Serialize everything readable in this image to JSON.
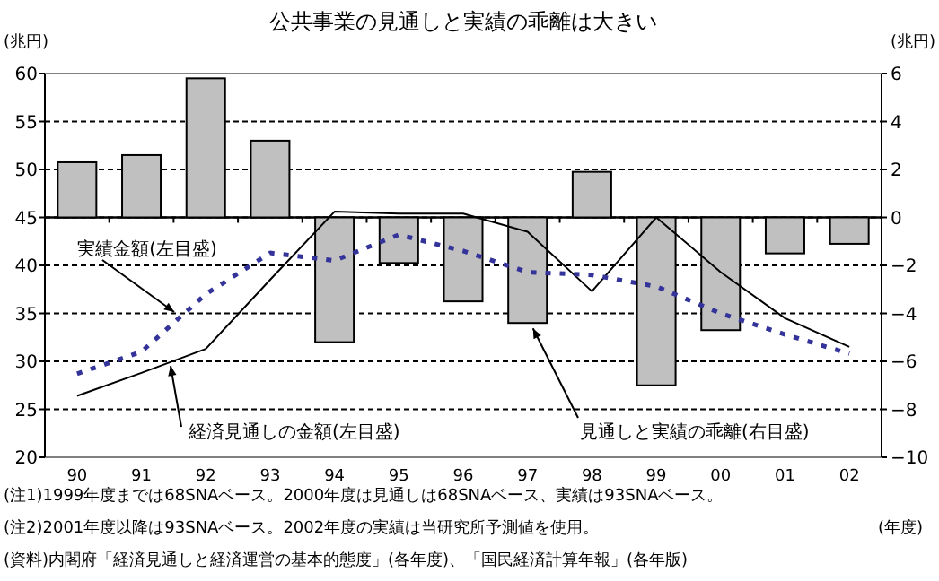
{
  "chart_data": {
    "type": "bar",
    "title": "公共事業の見通しと実績の乖離は大きい",
    "ylabel": "(兆円)",
    "y2label": "(兆円)",
    "xlabel": "(年度)",
    "categories": [
      "90",
      "91",
      "92",
      "93",
      "94",
      "95",
      "96",
      "97",
      "98",
      "99",
      "00",
      "01",
      "02"
    ],
    "series": [
      {
        "axis": "y2",
        "color": "#c0c0c0",
        "values": [
          2.3,
          2.6,
          5.8,
          3.2,
          -5.2,
          -1.9,
          -3.5,
          -4.4,
          1.9,
          -7.0,
          -4.7,
          -1.5,
          -1.1
        ]
      },
      {
        "type": "line",
        "color": "#000000",
        "line_style": "solid",
        "values": [
          26.4,
          28.8,
          31.3,
          38.5,
          45.6,
          45.4,
          45.4,
          43.5,
          37.3,
          45,
          39.3,
          34.5,
          31.5
        ]
      },
      {
        "type": "line",
        "color": "#333399",
        "line_style": "dashed",
        "values": [
          28.7,
          31.0,
          37.0,
          41.3,
          40.5,
          43.2,
          41.5,
          39.3,
          39,
          37.8,
          35,
          32.8,
          30.8
        ]
      }
    ],
    "ylim": [
      20,
      60
    ],
    "yticks": [
      20,
      25,
      30,
      35,
      40,
      45,
      50,
      55,
      60
    ],
    "y2lim": [
      -10,
      6
    ],
    "y2ticks": [
      {
        "value": -10,
        "label": "−10"
      },
      {
        "value": -8,
        "label": "−8"
      },
      {
        "value": -6,
        "label": "−6"
      },
      {
        "value": -4,
        "label": "−4"
      },
      {
        "value": -2,
        "label": "−2"
      },
      0,
      2,
      4,
      6
    ],
    "grid": "y",
    "annotations": [
      {
        "text": "見通しと実績の乖離(右目盛)",
        "x": "97",
        "y": 34
      },
      "経済見通しの金額(左目盛)",
      "実績金額(左目盛)",
      "(注1)1999年度までは68SNAベース。2000年度は見通しは68SNAベース、実績は93SNAベース。",
      "(注2)2001年度以降は93SNAベース。2002年度の実績は当研究所予測値を使用。",
      "(資料)内閣府「経済見通しと経済運営の基本的態度」(各年度)、「国民経済計算年報」(各年版)"
    ]
  }
}
